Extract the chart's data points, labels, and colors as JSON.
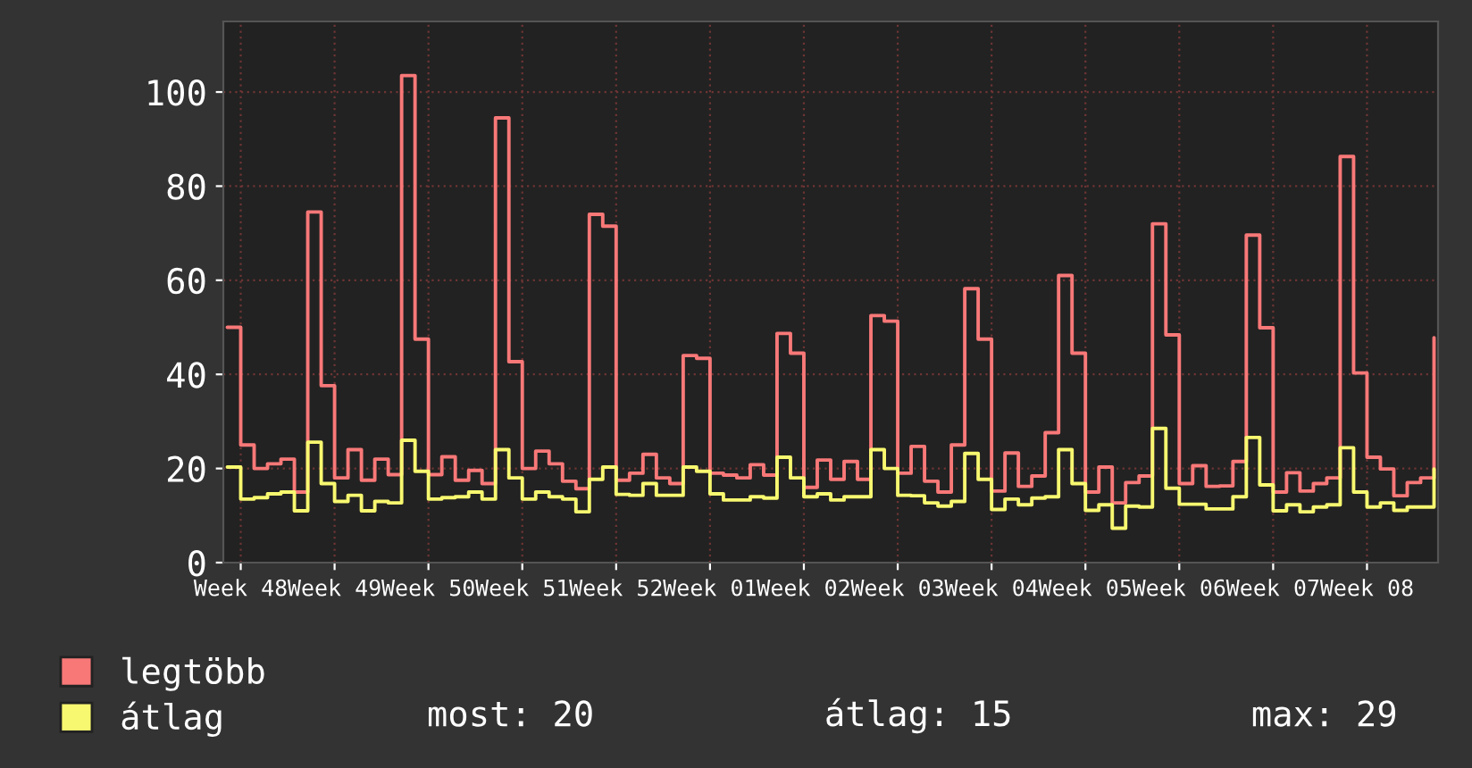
{
  "chart_data": {
    "type": "step",
    "categories": [
      null,
      "Week 48",
      null,
      null,
      null,
      null,
      null,
      null,
      "Week 49",
      null,
      null,
      null,
      null,
      null,
      null,
      "Week 50",
      null,
      null,
      null,
      null,
      null,
      null,
      "Week 51",
      null,
      null,
      null,
      null,
      null,
      null,
      "Week 52",
      null,
      null,
      null,
      null,
      null,
      null,
      "Week 01",
      null,
      null,
      null,
      null,
      null,
      null,
      "Week 02",
      null,
      null,
      null,
      null,
      null,
      null,
      "Week 03",
      null,
      null,
      null,
      null,
      null,
      null,
      "Week 04",
      null,
      null,
      null,
      null,
      null,
      null,
      "Week 05",
      null,
      null,
      null,
      null,
      null,
      null,
      "Week 06",
      null,
      null,
      null,
      null,
      null,
      null,
      "Week 07",
      null,
      null,
      null,
      null,
      null,
      null,
      "Week 08",
      null,
      null,
      null,
      null,
      null
    ],
    "series": [
      {
        "name": "legtöbb",
        "color": "#f87878",
        "values": [
          50,
          25,
          20,
          21,
          22,
          15,
          74.5,
          37.6,
          18,
          24,
          17.5,
          22,
          18.7,
          103.5,
          47.5,
          18.7,
          22.5,
          17.5,
          19.6,
          16.8,
          94.5,
          42.7,
          20,
          23.7,
          21,
          17.3,
          15.7,
          74,
          71.5,
          17.5,
          19,
          23,
          18,
          16.8,
          44,
          43.4,
          19,
          18.6,
          18,
          20.8,
          18.6,
          48.7,
          44.5,
          16,
          21.8,
          17.7,
          21.5,
          17.7,
          52.5,
          51.3,
          19,
          24.7,
          17.3,
          15,
          25,
          58.2,
          47.5,
          15.2,
          23.3,
          16.2,
          18.4,
          27.6,
          61,
          44.5,
          15,
          20.3,
          12.7,
          17,
          18.4,
          72,
          48.4,
          16.8,
          20.6,
          16.2,
          16.3,
          21.5,
          69.6,
          49.9,
          15,
          19.1,
          15.2,
          16.8,
          18,
          86.3,
          40.3,
          22.4,
          19.9,
          14.2,
          17,
          18,
          47.8
        ]
      },
      {
        "name": "átlag",
        "color": "#f8f870",
        "values": [
          20.3,
          13.5,
          13.8,
          14.6,
          15,
          11,
          25.6,
          16.8,
          13,
          14.3,
          11,
          13,
          12.7,
          26,
          19.4,
          13.5,
          13.8,
          14,
          15,
          13.5,
          24,
          18,
          13.5,
          15,
          14,
          13.5,
          10.8,
          17.7,
          20.3,
          14.5,
          14.3,
          16.8,
          14.3,
          14.3,
          20.3,
          19.4,
          14.6,
          13.3,
          13.3,
          14,
          13.7,
          22.4,
          18,
          14,
          14.6,
          13.3,
          14,
          14,
          24,
          20,
          14.3,
          14.2,
          12.7,
          12,
          13,
          23.2,
          17.7,
          11.3,
          13.5,
          12.3,
          13.7,
          14,
          24,
          16.8,
          11.1,
          12.3,
          7.3,
          12,
          11.8,
          28.5,
          15.8,
          12.4,
          12.4,
          11.4,
          11.4,
          14,
          26.6,
          16.5,
          11,
          12.3,
          10.8,
          11.8,
          12.3,
          24.4,
          15,
          11.8,
          12.7,
          11.1,
          11.8,
          11.8,
          19.9
        ]
      }
    ],
    "ylim": [
      0,
      115
    ],
    "yticks": [
      0,
      20,
      40,
      60,
      80,
      100
    ],
    "grid": true,
    "legend": "bottom left",
    "annotations": [
      "most: 20",
      "átlag: 15",
      "max: 29"
    ]
  }
}
